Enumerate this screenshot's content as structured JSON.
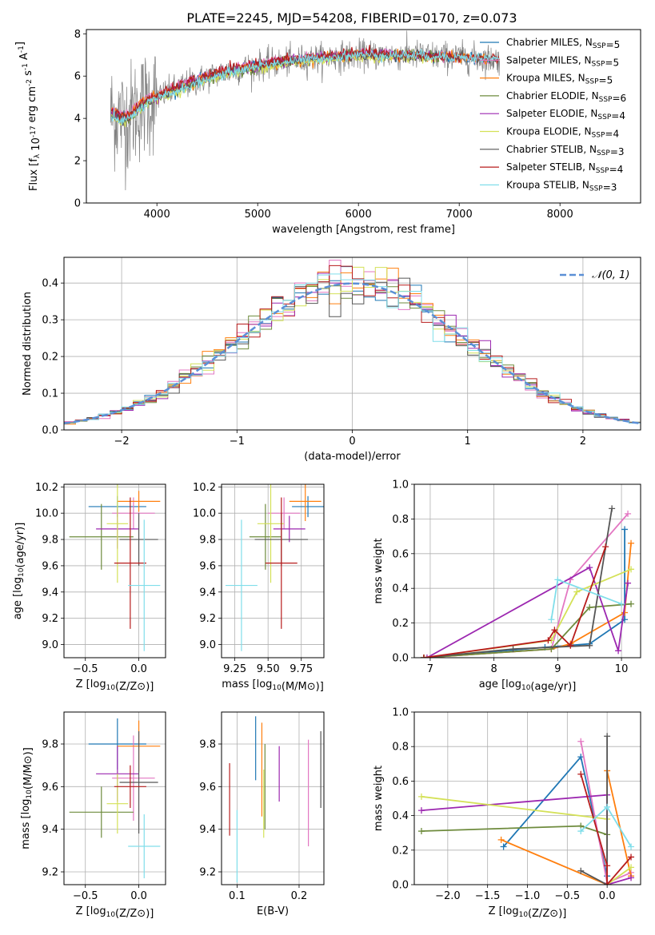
{
  "figure_title": "PLATE=2245, MJD=54208, FIBERID=0170, z=0.073",
  "colors": {
    "chabrier_miles": "#1f77b4",
    "salpeter_miles": "#e377c2",
    "kroupa_miles": "#ff7f0e",
    "chabrier_elodie": "#6e8b3d",
    "salpeter_elodie": "#9c27b0",
    "kroupa_elodie": "#d4e157",
    "chabrier_stelib": "#555555",
    "salpeter_stelib": "#b71c1c",
    "kroupa_stelib": "#80deea",
    "gaussian": "#5b8fd6"
  },
  "chart_data": [
    {
      "id": "spectrum",
      "type": "line",
      "xlabel": "wavelength [Angstrom, rest frame]",
      "ylabel": "Flux [f_λ 10^-17 erg cm^-2 s^-1 A^-1]",
      "xlim": [
        3300,
        8800
      ],
      "ylim": [
        0,
        8.2
      ],
      "xticks": [
        "4000",
        "5000",
        "6000",
        "7000",
        "8000"
      ],
      "yticks": [
        "0",
        "2",
        "4",
        "6",
        "8"
      ],
      "grid": false,
      "legend_position": "right",
      "series": [
        {
          "name": "Chabrier MILES, N_SSP=5",
          "x": [
            3550,
            3700,
            3900,
            4100,
            4300,
            4600,
            5000,
            5500,
            6000,
            6500,
            7000,
            7300
          ],
          "y": [
            4.2,
            4.0,
            4.8,
            5.2,
            5.6,
            6.1,
            6.5,
            6.8,
            7.0,
            7.0,
            6.9,
            6.8
          ]
        },
        {
          "name": "Salpeter MILES, N_SSP=5",
          "x": [
            3550,
            3700,
            3900,
            4100,
            4300,
            4600,
            5000,
            5500,
            6000,
            6500,
            7000,
            7300
          ],
          "y": [
            4.4,
            4.2,
            5.0,
            5.3,
            5.7,
            6.2,
            6.6,
            6.9,
            7.1,
            7.0,
            6.9,
            6.8
          ]
        },
        {
          "name": "Kroupa MILES, N_SSP=5",
          "x": [
            3550,
            3700,
            3900,
            4100,
            4300,
            4600,
            5000,
            5500,
            6000,
            6500,
            7000,
            7300
          ],
          "y": [
            4.3,
            4.1,
            4.9,
            5.2,
            5.6,
            6.1,
            6.5,
            6.8,
            7.0,
            7.0,
            6.9,
            6.8
          ]
        },
        {
          "name": "Chabrier ELODIE, N_SSP=6",
          "x": [
            3550,
            3700,
            3900,
            4100,
            4300,
            4600,
            5000,
            5500,
            6000,
            6500,
            6800
          ],
          "y": [
            4.1,
            3.9,
            4.7,
            5.1,
            5.5,
            6.0,
            6.4,
            6.8,
            7.0,
            7.0,
            6.9
          ]
        },
        {
          "name": "Salpeter ELODIE, N_SSP=4",
          "x": [
            3550,
            3700,
            3900,
            4100,
            4300,
            4600,
            5000,
            5500,
            6000,
            6500,
            6800
          ],
          "y": [
            4.2,
            4.0,
            4.8,
            5.2,
            5.6,
            6.1,
            6.5,
            6.8,
            7.0,
            7.0,
            6.9
          ]
        },
        {
          "name": "Kroupa ELODIE, N_SSP=4",
          "x": [
            3550,
            3700,
            3900,
            4100,
            4300,
            4600,
            5000,
            5500,
            6000,
            6500,
            6800
          ],
          "y": [
            4.0,
            3.8,
            4.8,
            5.1,
            5.5,
            6.0,
            6.4,
            6.7,
            6.9,
            6.9,
            6.8
          ]
        },
        {
          "name": "Chabrier STELIB, N_SSP=3",
          "x": [
            3550,
            3700,
            3900,
            4100,
            4300,
            4600,
            5000,
            5500,
            6000,
            6500,
            7000,
            7400
          ],
          "y": [
            4.2,
            4.0,
            4.8,
            5.2,
            5.6,
            6.1,
            6.5,
            6.8,
            7.0,
            7.0,
            6.9,
            6.8
          ]
        },
        {
          "name": "Salpeter STELIB, N_SSP=4",
          "x": [
            3550,
            3700,
            3900,
            4100,
            4300,
            4600,
            5000,
            5500,
            6000,
            6500,
            7000,
            7400
          ],
          "y": [
            4.3,
            4.1,
            4.9,
            5.3,
            5.7,
            6.2,
            6.6,
            6.9,
            7.1,
            7.0,
            6.9,
            6.8
          ]
        },
        {
          "name": "Kroupa STELIB, N_SSP=3",
          "x": [
            3550,
            3700,
            3900,
            4100,
            4300,
            4600,
            5000,
            5500,
            6000,
            6500,
            7000,
            7400
          ],
          "y": [
            4.0,
            3.9,
            4.7,
            5.1,
            5.5,
            6.0,
            6.5,
            6.8,
            7.0,
            7.0,
            6.9,
            6.8
          ]
        }
      ]
    },
    {
      "id": "residuals",
      "type": "line",
      "xlabel": "(data-model)/error",
      "ylabel": "Normed distribution",
      "xlim": [
        -2.5,
        2.5
      ],
      "ylim": [
        0,
        0.47
      ],
      "xticks": [
        "−2",
        "−1",
        "0",
        "1",
        "2"
      ],
      "yticks": [
        "0.0",
        "0.1",
        "0.2",
        "0.3",
        "0.4"
      ],
      "grid": true,
      "legend_position": "top-right",
      "legend": "𝒩(0, 1)",
      "gaussian": {
        "mean": 0,
        "sigma": 1
      },
      "histogram_bin_width": 0.1
    },
    {
      "id": "age_vs_Z",
      "type": "scatter",
      "xlabel": "Z [log10(Z/Z⊙)]",
      "ylabel": "age [log10(age/yr)]",
      "xlim": [
        -0.7,
        0.25
      ],
      "ylim": [
        8.9,
        10.22
      ],
      "xticks": [
        "−0.5",
        "0.0"
      ],
      "yticks": [
        "9.0",
        "9.2",
        "9.4",
        "9.6",
        "9.8",
        "10.0",
        "10.2"
      ],
      "grid": true,
      "points": [
        {
          "series": "Chabrier MILES",
          "x": -0.2,
          "xerr": 0.27,
          "y": 10.05,
          "yerr": 0.08
        },
        {
          "series": "Salpeter MILES",
          "x": -0.05,
          "xerr": 0.2,
          "y": 10.0,
          "yerr": 0.12
        },
        {
          "series": "Kroupa MILES",
          "x": 0.0,
          "xerr": 0.2,
          "y": 10.09,
          "yerr": 0.08
        },
        {
          "series": "Chabrier ELODIE",
          "x": -0.35,
          "xerr": 0.3,
          "y": 9.82,
          "yerr": 0.25
        },
        {
          "series": "Salpeter ELODIE",
          "x": -0.2,
          "xerr": 0.2,
          "y": 9.88,
          "yerr": 0.15
        },
        {
          "series": "Kroupa ELODIE",
          "x": -0.2,
          "xerr": 0.1,
          "y": 9.92,
          "yerr": 0.45
        },
        {
          "series": "Chabrier STELIB",
          "x": 0.0,
          "xerr": 0.18,
          "y": 9.8,
          "yerr": 0.2
        },
        {
          "series": "Salpeter STELIB",
          "x": -0.08,
          "xerr": 0.15,
          "y": 9.62,
          "yerr": 0.5
        },
        {
          "series": "Kroupa STELIB",
          "x": 0.05,
          "xerr": 0.15,
          "y": 9.45,
          "yerr": 0.5
        }
      ]
    },
    {
      "id": "age_vs_mass",
      "type": "scatter",
      "xlabel": "mass [log10(M/M⊙)]",
      "xlim": [
        9.15,
        9.92
      ],
      "ylim": [
        8.9,
        10.22
      ],
      "xticks": [
        "9.25",
        "9.50",
        "9.75"
      ],
      "yticks": [
        "9.0",
        "9.2",
        "9.4",
        "9.6",
        "9.8",
        "10.0",
        "10.2"
      ],
      "grid": true,
      "points": [
        {
          "series": "Chabrier MILES",
          "x": 9.8,
          "xerr": 0.12,
          "y": 10.05,
          "yerr": 0.08
        },
        {
          "series": "Salpeter MILES",
          "x": 9.62,
          "xerr": 0.12,
          "y": 10.0,
          "yerr": 0.12
        },
        {
          "series": "Kroupa MILES",
          "x": 9.78,
          "xerr": 0.12,
          "y": 10.09,
          "yerr": 0.15
        },
        {
          "series": "Chabrier ELODIE",
          "x": 9.48,
          "xerr": 0.12,
          "y": 9.82,
          "yerr": 0.25
        },
        {
          "series": "Salpeter ELODIE",
          "x": 9.66,
          "xerr": 0.12,
          "y": 9.88,
          "yerr": 0.1
        },
        {
          "series": "Kroupa ELODIE",
          "x": 9.52,
          "xerr": 0.1,
          "y": 9.92,
          "yerr": 0.45
        },
        {
          "series": "Chabrier STELIB",
          "x": 9.6,
          "xerr": 0.2,
          "y": 9.8,
          "yerr": 0.2
        },
        {
          "series": "Salpeter STELIB",
          "x": 9.6,
          "xerr": 0.12,
          "y": 9.62,
          "yerr": 0.5
        },
        {
          "series": "Kroupa STELIB",
          "x": 9.3,
          "xerr": 0.12,
          "y": 9.45,
          "yerr": 0.5
        }
      ]
    },
    {
      "id": "weight_vs_age",
      "type": "line",
      "xlabel": "age [log10(age/yr)]",
      "ylabel": "mass weight",
      "xlim": [
        6.75,
        10.3
      ],
      "ylim": [
        0,
        1.0
      ],
      "xticks": [
        "7",
        "8",
        "9",
        "10"
      ],
      "yticks": [
        "0.0",
        "0.2",
        "0.4",
        "0.6",
        "0.8",
        "1.0"
      ],
      "grid": true,
      "series": [
        {
          "name": "Chabrier MILES",
          "x": [
            6.9,
            8.8,
            9.5,
            10.05,
            10.05
          ],
          "y": [
            0.0,
            0.06,
            0.08,
            0.22,
            0.74
          ]
        },
        {
          "name": "Salpeter MILES",
          "x": [
            6.9,
            8.9,
            9.2,
            10.1
          ],
          "y": [
            0.0,
            0.05,
            0.45,
            0.83
          ]
        },
        {
          "name": "Kroupa MILES",
          "x": [
            6.9,
            8.9,
            9.2,
            10.05,
            10.15
          ],
          "y": [
            0.0,
            0.05,
            0.08,
            0.26,
            0.66
          ]
        },
        {
          "name": "Chabrier ELODIE",
          "x": [
            6.9,
            8.9,
            9.5,
            10.15
          ],
          "y": [
            0.0,
            0.05,
            0.29,
            0.31
          ]
        },
        {
          "name": "Salpeter ELODIE",
          "x": [
            6.95,
            9.5,
            9.95,
            10.1
          ],
          "y": [
            0.0,
            0.52,
            0.04,
            0.43
          ]
        },
        {
          "name": "Kroupa ELODIE",
          "x": [
            6.9,
            8.9,
            9.3,
            10.15
          ],
          "y": [
            0.0,
            0.1,
            0.38,
            0.51
          ]
        },
        {
          "name": "Chabrier STELIB",
          "x": [
            6.9,
            8.3,
            9.5,
            9.85
          ],
          "y": [
            0.0,
            0.05,
            0.07,
            0.86
          ]
        },
        {
          "name": "Salpeter STELIB",
          "x": [
            6.9,
            8.85,
            8.95,
            9.2,
            9.75
          ],
          "y": [
            0.0,
            0.1,
            0.16,
            0.07,
            0.64
          ]
        },
        {
          "name": "Kroupa STELIB",
          "x": [
            8.9,
            9.0,
            10.0
          ],
          "y": [
            0.22,
            0.45,
            0.31
          ]
        }
      ]
    },
    {
      "id": "mass_vs_Z",
      "type": "scatter",
      "xlabel": "Z [log10(Z/Z⊙)]",
      "ylabel": "mass [log10(M/M⊙)]",
      "xlim": [
        -0.7,
        0.25
      ],
      "ylim": [
        9.14,
        9.95
      ],
      "xticks": [
        "−0.5",
        "0.0"
      ],
      "yticks": [
        "9.2",
        "9.4",
        "9.6",
        "9.8"
      ],
      "grid": true,
      "points": [
        {
          "series": "Chabrier MILES",
          "x": -0.2,
          "xerr": 0.27,
          "y": 9.8,
          "yerr": 0.12
        },
        {
          "series": "Salpeter MILES",
          "x": -0.05,
          "xerr": 0.2,
          "y": 9.64,
          "yerr": 0.2
        },
        {
          "series": "Kroupa MILES",
          "x": 0.0,
          "xerr": 0.2,
          "y": 9.79,
          "yerr": 0.12
        },
        {
          "series": "Chabrier ELODIE",
          "x": -0.35,
          "xerr": 0.3,
          "y": 9.48,
          "yerr": 0.12
        },
        {
          "series": "Salpeter ELODIE",
          "x": -0.2,
          "xerr": 0.2,
          "y": 9.66,
          "yerr": 0.13
        },
        {
          "series": "Kroupa ELODIE",
          "x": -0.2,
          "xerr": 0.1,
          "y": 9.52,
          "yerr": 0.14
        },
        {
          "series": "Chabrier STELIB",
          "x": 0.0,
          "xerr": 0.18,
          "y": 9.62,
          "yerr": 0.24
        },
        {
          "series": "Salpeter STELIB",
          "x": -0.08,
          "xerr": 0.15,
          "y": 9.6,
          "yerr": 0.1
        },
        {
          "series": "Kroupa STELIB",
          "x": 0.05,
          "xerr": 0.15,
          "y": 9.32,
          "yerr": 0.15
        }
      ]
    },
    {
      "id": "mass_vs_ebv",
      "type": "scatter",
      "xlabel": "E(B-V)",
      "xlim": [
        0.075,
        0.24
      ],
      "ylim": [
        9.14,
        9.95
      ],
      "xticks": [
        "0.1",
        "0.2"
      ],
      "yticks": [
        "9.2",
        "9.4",
        "9.6",
        "9.8"
      ],
      "grid": true,
      "points": [
        {
          "series": "Chabrier MILES",
          "x": 0.13,
          "y": 9.78,
          "yerr": 0.15
        },
        {
          "series": "Salpeter MILES",
          "x": 0.215,
          "y": 9.57,
          "yerr": 0.25
        },
        {
          "series": "Kroupa MILES",
          "x": 0.14,
          "y": 9.68,
          "yerr": 0.22
        },
        {
          "series": "Chabrier ELODIE",
          "x": 0.145,
          "y": 9.6,
          "yerr": 0.2
        },
        {
          "series": "Salpeter ELODIE",
          "x": 0.168,
          "y": 9.66,
          "yerr": 0.13
        },
        {
          "series": "Kroupa ELODIE",
          "x": 0.143,
          "y": 9.52,
          "yerr": 0.16
        },
        {
          "series": "Chabrier STELIB",
          "x": 0.235,
          "y": 9.68,
          "yerr": 0.18
        },
        {
          "series": "Salpeter STELIB",
          "x": 0.088,
          "y": 9.54,
          "yerr": 0.17
        },
        {
          "series": "Kroupa STELIB",
          "x": 0.1,
          "y": 9.32,
          "yerr": 0.17
        }
      ]
    },
    {
      "id": "weight_vs_Z",
      "type": "line",
      "xlabel": "Z [log10(Z/Z⊙)]",
      "ylabel": "mass weight",
      "xlim": [
        -2.42,
        0.42
      ],
      "ylim": [
        0,
        1.0
      ],
      "xticks": [
        "−2.0",
        "−1.5",
        "−1.0",
        "−0.5",
        "0.0"
      ],
      "yticks": [
        "0.0",
        "0.2",
        "0.4",
        "0.6",
        "0.8",
        "1.0"
      ],
      "grid": true,
      "series": [
        {
          "name": "Chabrier MILES",
          "x": [
            -1.3,
            -0.33,
            0.0,
            0.0
          ],
          "y": [
            0.22,
            0.74,
            0.05,
            0.0
          ]
        },
        {
          "name": "Salpeter MILES",
          "x": [
            -0.33,
            0.0,
            0.3
          ],
          "y": [
            0.83,
            0.01,
            0.07
          ]
        },
        {
          "name": "Kroupa MILES",
          "x": [
            -1.33,
            0.0,
            0.0,
            0.3
          ],
          "y": [
            0.26,
            0.0,
            0.66,
            0.05
          ]
        },
        {
          "name": "Chabrier ELODIE",
          "x": [
            -2.33,
            -0.33,
            0.0
          ],
          "y": [
            0.31,
            0.34,
            0.29
          ]
        },
        {
          "name": "Salpeter ELODIE",
          "x": [
            -2.33,
            0.0,
            0.0,
            0.3
          ],
          "y": [
            0.43,
            0.52,
            0.0,
            0.04
          ]
        },
        {
          "name": "Kroupa ELODIE",
          "x": [
            -2.33,
            0.0,
            0.0,
            0.3
          ],
          "y": [
            0.51,
            0.38,
            0.0,
            0.1
          ]
        },
        {
          "name": "Chabrier STELIB",
          "x": [
            -0.33,
            0.0,
            0.0
          ],
          "y": [
            0.08,
            0.0,
            0.86
          ]
        },
        {
          "name": "Salpeter STELIB",
          "x": [
            -0.33,
            0.0,
            0.0,
            0.3
          ],
          "y": [
            0.64,
            0.11,
            0.0,
            0.16
          ]
        },
        {
          "name": "Kroupa STELIB",
          "x": [
            -0.33,
            0.0,
            0.3
          ],
          "y": [
            0.31,
            0.45,
            0.22
          ]
        }
      ]
    }
  ]
}
